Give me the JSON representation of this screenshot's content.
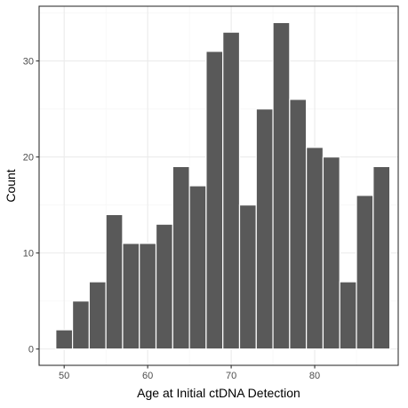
{
  "chart_data": {
    "type": "bar",
    "title": "",
    "xlabel": "Age at Initial ctDNA Detection",
    "ylabel": "Count",
    "bins": [
      {
        "x": 50,
        "count": 2
      },
      {
        "x": 52,
        "count": 5
      },
      {
        "x": 54,
        "count": 7
      },
      {
        "x": 56,
        "count": 14
      },
      {
        "x": 58,
        "count": 11
      },
      {
        "x": 60,
        "count": 11
      },
      {
        "x": 62,
        "count": 13
      },
      {
        "x": 64,
        "count": 19
      },
      {
        "x": 66,
        "count": 17
      },
      {
        "x": 68,
        "count": 31
      },
      {
        "x": 70,
        "count": 33
      },
      {
        "x": 72,
        "count": 15
      },
      {
        "x": 74,
        "count": 25
      },
      {
        "x": 76,
        "count": 34
      },
      {
        "x": 78,
        "count": 26
      },
      {
        "x": 80,
        "count": 21
      },
      {
        "x": 82,
        "count": 20
      },
      {
        "x": 84,
        "count": 7
      },
      {
        "x": 86,
        "count": 16
      },
      {
        "x": 88,
        "count": 19
      }
    ],
    "bin_width": 2,
    "xlim": [
      47,
      90
    ],
    "ylim": [
      -1.7,
      35.7
    ],
    "x_ticks": [
      50,
      60,
      70,
      80
    ],
    "y_ticks": [
      0,
      10,
      20,
      30
    ],
    "grid": true,
    "colors": {
      "bar_fill": "#595959",
      "bar_outline": "#ffffff",
      "grid_major": "#ebebeb",
      "grid_minor": "#f5f5f5",
      "panel_border": "#333333"
    }
  }
}
